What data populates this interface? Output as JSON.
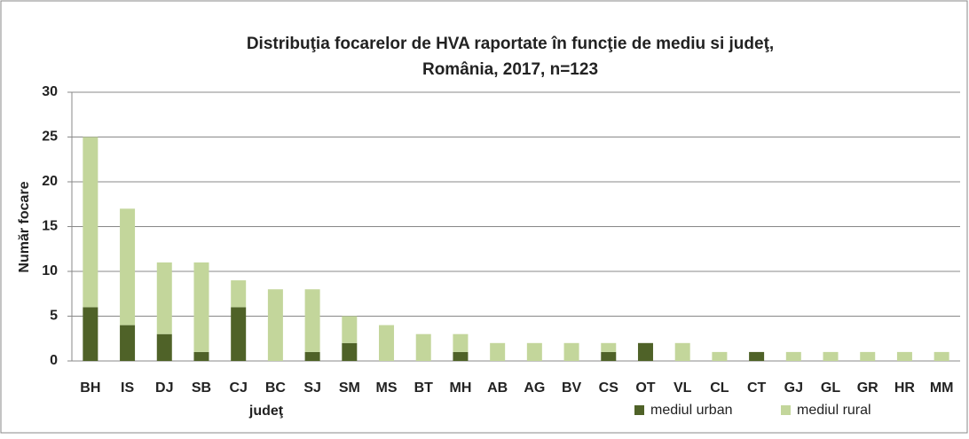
{
  "chart_data": {
    "type": "stacked_bar",
    "title": [
      "Distribuţia focarelor de HVA  raportate în funcţie de mediu si judeţ,",
      "România,  2017, n=123"
    ],
    "x_label": "judeţ",
    "y_label": "Număr focare",
    "categories": [
      "BH",
      "IS",
      "DJ",
      "SB",
      "CJ",
      "BC",
      "SJ",
      "SM",
      "MS",
      "BT",
      "MH",
      "AB",
      "AG",
      "BV",
      "CS",
      "OT",
      "VL",
      "CL",
      "CT",
      "GJ",
      "GL",
      "GR",
      "HR",
      "MM"
    ],
    "series": [
      {
        "name": "mediul urban",
        "color": "#4f6228",
        "values": [
          6,
          4,
          3,
          1,
          6,
          0,
          1,
          2,
          0,
          0,
          1,
          0,
          0,
          0,
          1,
          2,
          0,
          0,
          1,
          0,
          0,
          0,
          0,
          0
        ]
      },
      {
        "name": "mediul rural",
        "color": "#c3d69b",
        "values": [
          19,
          13,
          8,
          10,
          3,
          8,
          7,
          3,
          4,
          3,
          2,
          2,
          2,
          2,
          1,
          0,
          2,
          1,
          0,
          1,
          1,
          1,
          1,
          1
        ]
      }
    ],
    "ylim": [
      0,
      30
    ],
    "yticks": [
      0,
      5,
      10,
      15,
      20,
      25,
      30
    ],
    "grid": true,
    "legend": "bottom-right"
  }
}
